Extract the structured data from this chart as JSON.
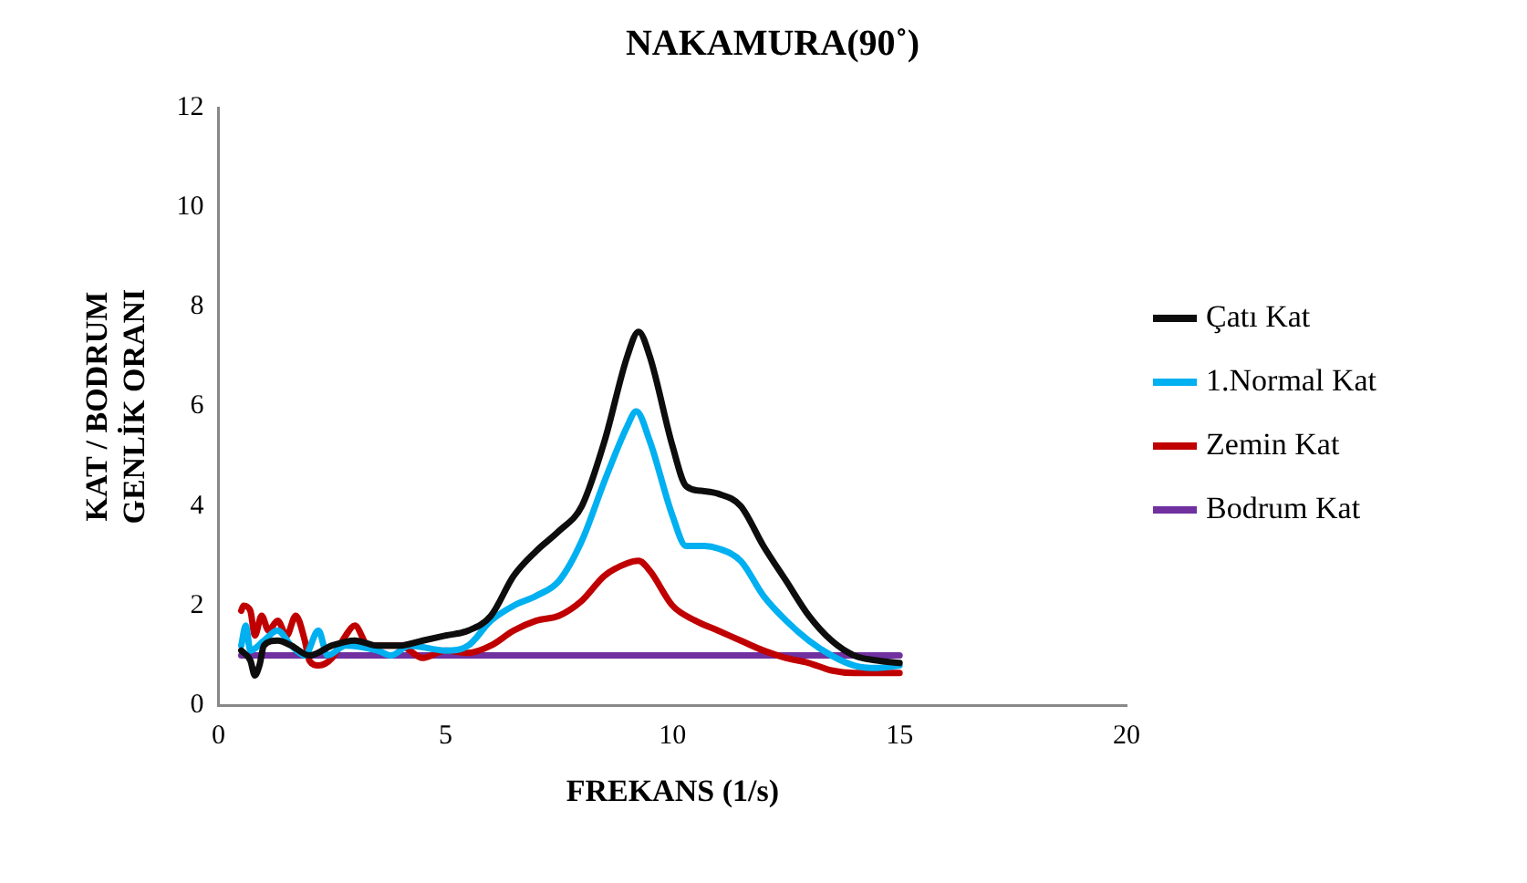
{
  "chart_data": {
    "type": "line",
    "title": "NAKAMURA(90˚)",
    "xlabel": "FREKANS (1/s)",
    "ylabel": "KAT / BODRUM\nGENLİK ORANI",
    "xlim": [
      0,
      20
    ],
    "xticks": [
      0,
      5,
      10,
      15,
      20
    ],
    "ylim": [
      0,
      12
    ],
    "yticks": [
      0,
      2,
      4,
      6,
      8,
      10,
      12
    ],
    "grid": false,
    "legend": "right",
    "marker": "none",
    "line_style": "solid",
    "series": [
      {
        "name": "Çatı Kat",
        "color": "#0d0d0d",
        "x": [
          0.5,
          0.7,
          0.8,
          0.9,
          1.0,
          1.3,
          1.6,
          2.0,
          2.5,
          3.0,
          3.5,
          4.0,
          4.5,
          5,
          5.5,
          6,
          6.5,
          7,
          7.5,
          8,
          8.5,
          9,
          9.25,
          9.5,
          10,
          10.3,
          10.7,
          11,
          11.5,
          12,
          12.5,
          13,
          13.5,
          14,
          14.5,
          15
        ],
        "values": [
          1.1,
          0.9,
          0.6,
          0.8,
          1.2,
          1.3,
          1.2,
          1.0,
          1.2,
          1.3,
          1.2,
          1.2,
          1.3,
          1.4,
          1.5,
          1.8,
          2.6,
          3.1,
          3.5,
          4.0,
          5.3,
          7.0,
          7.5,
          7.0,
          5.2,
          4.4,
          4.3,
          4.25,
          4.0,
          3.2,
          2.5,
          1.8,
          1.3,
          1.0,
          0.9,
          0.85
        ]
      },
      {
        "name": "1.Normal Kat",
        "color": "#00b0f0",
        "x": [
          0.5,
          0.6,
          0.7,
          1.0,
          1.3,
          1.6,
          1.9,
          2.2,
          2.4,
          2.8,
          3.5,
          3.8,
          4.2,
          5,
          5.5,
          6,
          6.5,
          7,
          7.5,
          8,
          8.5,
          9,
          9.2,
          9.5,
          10,
          10.3,
          10.7,
          11,
          11.5,
          12,
          12.5,
          13,
          13.5,
          14,
          14.5,
          15
        ],
        "values": [
          1.2,
          1.6,
          1.1,
          1.3,
          1.5,
          1.2,
          1.0,
          1.5,
          1.0,
          1.2,
          1.1,
          1.0,
          1.2,
          1.1,
          1.2,
          1.7,
          2.0,
          2.2,
          2.5,
          3.3,
          4.5,
          5.6,
          5.9,
          5.3,
          3.8,
          3.2,
          3.2,
          3.15,
          2.9,
          2.2,
          1.7,
          1.3,
          1.0,
          0.8,
          0.75,
          0.8
        ]
      },
      {
        "name": "Zemin Kat",
        "color": "#c00000",
        "x": [
          0.5,
          0.55,
          0.7,
          0.8,
          0.95,
          1.1,
          1.3,
          1.5,
          1.7,
          1.9,
          2.0,
          2.2,
          2.5,
          2.8,
          3.0,
          3.3,
          3.7,
          4.0,
          4.5,
          5,
          5.5,
          6,
          6.5,
          7,
          7.5,
          8,
          8.5,
          9,
          9.25,
          9.5,
          10,
          10.5,
          11,
          11.5,
          12,
          12.5,
          13,
          13.5,
          14,
          15
        ],
        "values": [
          1.9,
          2.0,
          1.9,
          1.4,
          1.8,
          1.5,
          1.7,
          1.4,
          1.8,
          1.3,
          0.9,
          0.8,
          0.95,
          1.4,
          1.6,
          1.2,
          1.2,
          1.2,
          0.95,
          1.1,
          1.05,
          1.2,
          1.5,
          1.7,
          1.8,
          2.1,
          2.6,
          2.85,
          2.9,
          2.7,
          2.0,
          1.7,
          1.5,
          1.3,
          1.1,
          0.95,
          0.85,
          0.7,
          0.65,
          0.65
        ]
      },
      {
        "name": "Bodrum Kat",
        "color": "#7030a0",
        "x": [
          0.5,
          15
        ],
        "values": [
          1,
          1
        ]
      }
    ]
  }
}
